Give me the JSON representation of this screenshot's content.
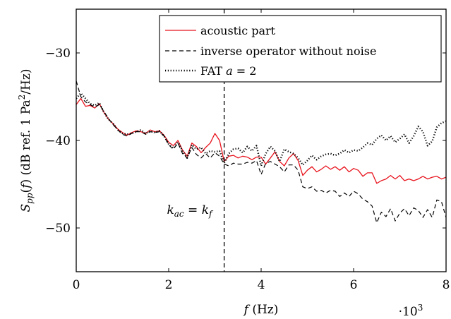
{
  "chart_data": {
    "type": "line",
    "xlabel": "f (Hz)",
    "ylabel": "S_pp(f) (dB ref. 1 Pa^2/Hz)",
    "x_multiplier_label": "·10^3",
    "xlim": [
      0,
      8000
    ],
    "ylim": [
      -55,
      -25
    ],
    "x_ticks": [
      0,
      2000,
      4000,
      6000,
      8000
    ],
    "x_tick_labels": [
      "0",
      "2",
      "4",
      "6",
      "8"
    ],
    "y_ticks": [
      -50,
      -40,
      -30
    ],
    "y_tick_labels": [
      "−50",
      "−40",
      "−30"
    ],
    "grid": false,
    "legend_position": "top-right",
    "annotations": [
      {
        "text": "k_ac = k_f",
        "x": 2450,
        "y": -47.9
      }
    ],
    "vlines": [
      {
        "x": 3200,
        "style": "dashed"
      }
    ],
    "series": [
      {
        "name": "acoustic part",
        "color": "#e8141e",
        "style": "solid",
        "x": [
          0,
          100,
          200,
          300,
          400,
          500,
          600,
          700,
          800,
          900,
          1000,
          1100,
          1200,
          1300,
          1400,
          1500,
          1600,
          1700,
          1800,
          1900,
          2000,
          2100,
          2200,
          2300,
          2400,
          2500,
          2600,
          2700,
          2800,
          2900,
          3000,
          3100,
          3200,
          3300,
          3400,
          3500,
          3600,
          3700,
          3800,
          3900,
          4000,
          4100,
          4200,
          4300,
          4400,
          4500,
          4600,
          4700,
          4800,
          4900,
          5000,
          5100,
          5200,
          5300,
          5400,
          5500,
          5600,
          5700,
          5800,
          5900,
          6000,
          6100,
          6200,
          6300,
          6400,
          6500,
          6600,
          6700,
          6800,
          6900,
          7000,
          7100,
          7200,
          7300,
          7400,
          7500,
          7600,
          7700,
          7800,
          7900,
          8000
        ],
        "values": [
          -35.9,
          -35.2,
          -36.1,
          -36.0,
          -36.3,
          -35.8,
          -36.8,
          -37.6,
          -38.1,
          -38.7,
          -39.1,
          -39.4,
          -39.1,
          -38.9,
          -39.0,
          -39.2,
          -38.8,
          -39.0,
          -38.9,
          -39.4,
          -40.2,
          -40.6,
          -40.0,
          -41.1,
          -41.8,
          -40.3,
          -40.7,
          -41.4,
          -40.8,
          -40.3,
          -39.2,
          -40.0,
          -42.4,
          -41.8,
          -41.7,
          -42.0,
          -41.8,
          -41.9,
          -42.2,
          -41.9,
          -41.9,
          -42.7,
          -42.0,
          -41.3,
          -42.4,
          -42.9,
          -42.0,
          -41.5,
          -42.3,
          -44.0,
          -43.4,
          -43.0,
          -43.6,
          -43.3,
          -42.9,
          -43.3,
          -43.0,
          -43.4,
          -43.0,
          -43.6,
          -43.2,
          -43.4,
          -44.1,
          -43.7,
          -43.7,
          -44.9,
          -44.6,
          -44.4,
          -44.0,
          -44.4,
          -44.0,
          -44.6,
          -44.4,
          -44.6,
          -44.4,
          -44.1,
          -44.4,
          -44.2,
          -44.1,
          -44.4,
          -44.2
        ]
      },
      {
        "name": "inverse operator without noise",
        "color": "#000000",
        "style": "dashed",
        "x": [
          0,
          100,
          200,
          300,
          400,
          500,
          600,
          700,
          800,
          900,
          1000,
          1100,
          1200,
          1300,
          1400,
          1500,
          1600,
          1700,
          1800,
          1900,
          2000,
          2100,
          2200,
          2300,
          2400,
          2500,
          2600,
          2700,
          2800,
          2900,
          3000,
          3100,
          3200,
          3300,
          3400,
          3500,
          3600,
          3700,
          3800,
          3900,
          4000,
          4100,
          4200,
          4300,
          4400,
          4500,
          4600,
          4700,
          4800,
          4900,
          5000,
          5100,
          5200,
          5300,
          5400,
          5500,
          5600,
          5700,
          5800,
          5900,
          6000,
          6100,
          6200,
          6300,
          6400,
          6500,
          6600,
          6700,
          6800,
          6900,
          7000,
          7100,
          7200,
          7300,
          7400,
          7500,
          7600,
          7700,
          7800,
          7900,
          8000
        ],
        "values": [
          -33.2,
          -35.0,
          -35.6,
          -35.9,
          -36.2,
          -35.9,
          -36.7,
          -37.5,
          -38.2,
          -38.8,
          -39.3,
          -39.5,
          -39.2,
          -39.0,
          -39.0,
          -39.3,
          -39.0,
          -39.1,
          -39.0,
          -39.5,
          -40.5,
          -41.0,
          -40.3,
          -41.5,
          -42.0,
          -40.8,
          -41.6,
          -42.0,
          -41.5,
          -42.0,
          -41.4,
          -41.8,
          -42.7,
          -42.9,
          -42.6,
          -42.7,
          -42.7,
          -42.5,
          -42.6,
          -42.3,
          -43.9,
          -42.6,
          -42.4,
          -42.7,
          -43.0,
          -43.6,
          -42.8,
          -42.8,
          -43.4,
          -45.3,
          -45.5,
          -45.3,
          -45.8,
          -45.7,
          -46.0,
          -45.7,
          -45.8,
          -46.4,
          -46.0,
          -46.4,
          -45.8,
          -46.1,
          -46.7,
          -47.0,
          -47.5,
          -49.4,
          -48.2,
          -48.7,
          -47.8,
          -49.2,
          -48.3,
          -47.8,
          -48.6,
          -47.7,
          -48.0,
          -48.8,
          -47.9,
          -48.8,
          -46.8,
          -47.0,
          -48.8
        ]
      },
      {
        "name": "FAT a = 2",
        "color": "#000000",
        "style": "dotted",
        "x": [
          0,
          100,
          200,
          300,
          400,
          500,
          600,
          700,
          800,
          900,
          1000,
          1100,
          1200,
          1300,
          1400,
          1500,
          1600,
          1700,
          1800,
          1900,
          2000,
          2100,
          2200,
          2300,
          2400,
          2500,
          2600,
          2700,
          2800,
          2900,
          3000,
          3100,
          3200,
          3300,
          3400,
          3500,
          3600,
          3700,
          3800,
          3900,
          4000,
          4100,
          4200,
          4300,
          4400,
          4500,
          4600,
          4700,
          4800,
          4900,
          5000,
          5100,
          5200,
          5300,
          5400,
          5500,
          5600,
          5700,
          5800,
          5900,
          6000,
          6100,
          6200,
          6300,
          6400,
          6500,
          6600,
          6700,
          6800,
          6900,
          7000,
          7100,
          7200,
          7300,
          7400,
          7500,
          7600,
          7700,
          7800,
          7900,
          8000
        ],
        "values": [
          -35.2,
          -34.6,
          -35.2,
          -35.8,
          -36.0,
          -35.7,
          -36.8,
          -37.6,
          -38.1,
          -38.8,
          -39.2,
          -39.3,
          -39.2,
          -39.0,
          -38.8,
          -39.2,
          -38.9,
          -39.1,
          -38.9,
          -39.5,
          -40.4,
          -40.9,
          -40.2,
          -41.2,
          -42.0,
          -40.5,
          -41.0,
          -40.8,
          -41.5,
          -41.2,
          -41.3,
          -41.2,
          -42.6,
          -41.5,
          -41.0,
          -40.9,
          -41.4,
          -40.7,
          -41.2,
          -40.6,
          -42.9,
          -41.5,
          -40.7,
          -41.2,
          -42.4,
          -41.0,
          -41.3,
          -41.5,
          -42.0,
          -42.8,
          -42.3,
          -41.7,
          -42.2,
          -41.8,
          -41.6,
          -41.5,
          -41.7,
          -41.5,
          -41.1,
          -41.4,
          -41.1,
          -41.2,
          -40.8,
          -40.3,
          -40.5,
          -39.8,
          -39.4,
          -40.0,
          -39.5,
          -40.2,
          -39.8,
          -39.3,
          -40.3,
          -39.5,
          -38.4,
          -39.0,
          -40.6,
          -40.1,
          -38.5,
          -38.0,
          -37.8
        ]
      }
    ]
  }
}
